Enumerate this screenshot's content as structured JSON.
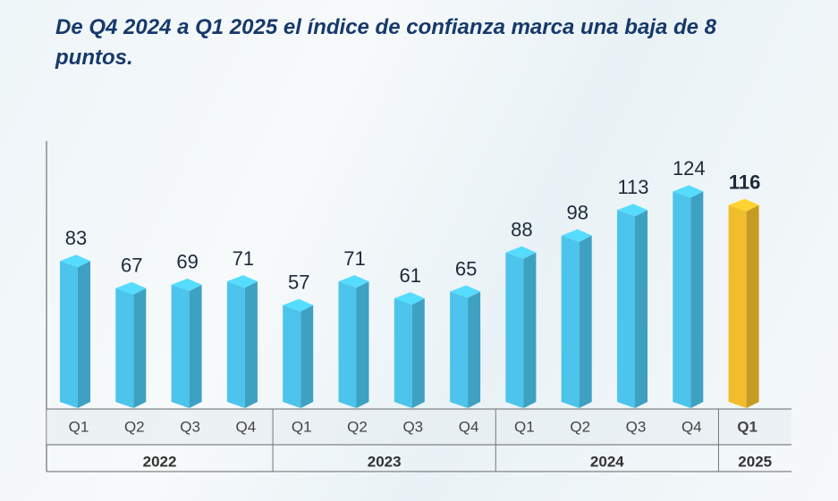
{
  "chart_data": {
    "type": "bar",
    "title": "De Q4 2024 a Q1 2025 el índice de confianza marca una baja de 8 puntos.",
    "groups": [
      {
        "label": "2022",
        "categories": [
          "Q1",
          "Q2",
          "Q3",
          "Q4"
        ],
        "values": [
          83,
          67,
          69,
          71
        ],
        "color": "#4cc4ec"
      },
      {
        "label": "2023",
        "categories": [
          "Q1",
          "Q2",
          "Q3",
          "Q4"
        ],
        "values": [
          57,
          71,
          61,
          65
        ],
        "color": "#4cc4ec"
      },
      {
        "label": "2024",
        "categories": [
          "Q1",
          "Q2",
          "Q3",
          "Q4"
        ],
        "values": [
          88,
          98,
          113,
          124
        ],
        "color": "#4cc4ec"
      },
      {
        "label": "2025",
        "categories": [
          "Q1"
        ],
        "values": [
          116
        ],
        "color": "#f2bd2c"
      }
    ]
  }
}
